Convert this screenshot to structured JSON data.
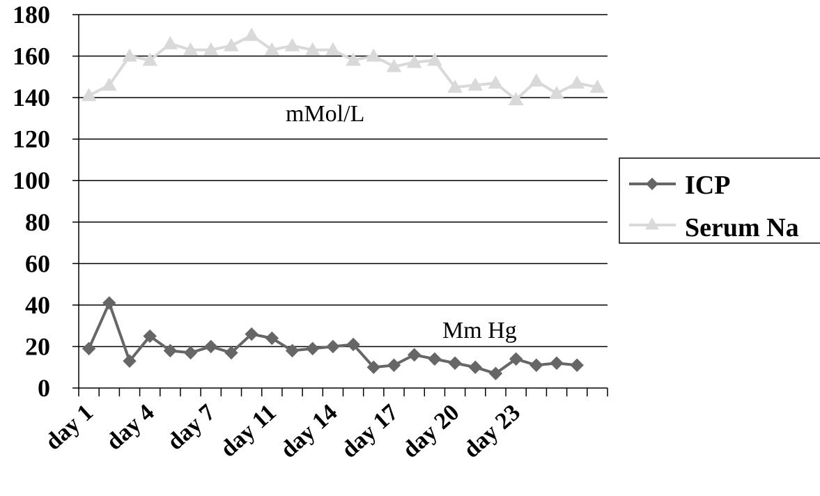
{
  "chart_data": {
    "type": "line",
    "title": "",
    "xlabel": "",
    "ylabel": "",
    "ylim": [
      0,
      180
    ],
    "yticks": [
      "0",
      "20",
      "40",
      "60",
      "80",
      "100",
      "120",
      "140",
      "160",
      "180"
    ],
    "grid": true,
    "legend_position": "right",
    "x_tick_labels": [
      "day 1",
      "day 4",
      "day 7",
      "day 11",
      "day 14",
      "day 17",
      "day 20",
      "day 23"
    ],
    "x_label_positions": [
      1,
      4,
      7,
      10,
      13,
      16,
      19,
      22
    ],
    "annotations": [
      "mMol/L",
      "Mm Hg"
    ],
    "series": [
      {
        "name": "ICP",
        "color": "#666666",
        "marker": "diamond",
        "values": [
          19,
          41,
          13,
          25,
          18,
          17,
          20,
          17,
          26,
          24,
          18,
          19,
          20,
          21,
          10,
          11,
          16,
          14,
          12,
          10,
          7,
          14,
          11,
          12,
          11
        ]
      },
      {
        "name": "Serum Na",
        "color": "#d9d9d9",
        "marker": "triangle",
        "values": [
          141,
          146,
          160,
          158,
          166,
          163,
          163,
          165,
          170,
          163,
          165,
          163,
          163,
          158,
          160,
          155,
          157,
          158,
          145,
          146,
          147,
          139,
          148,
          142,
          147,
          145
        ]
      }
    ]
  }
}
